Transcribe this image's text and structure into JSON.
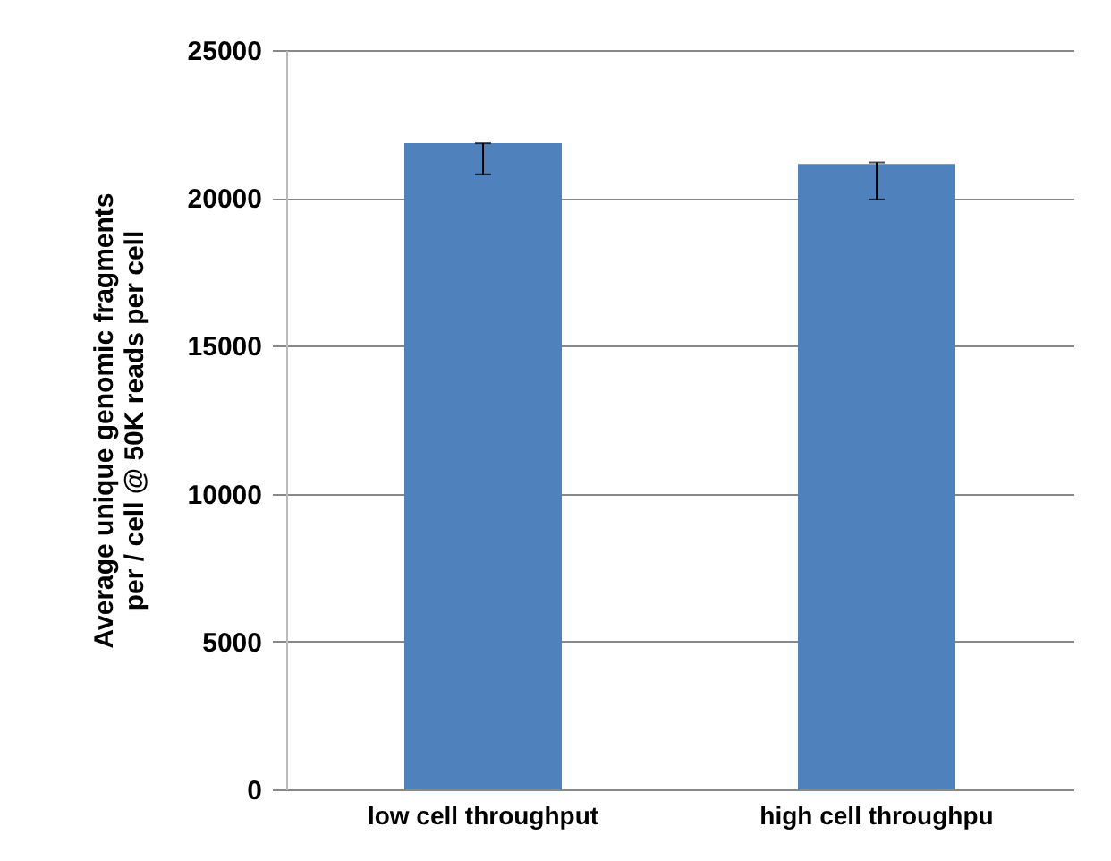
{
  "chart_data": {
    "type": "bar",
    "ylabel": "Average unique genomic fragments\nper / cell @ 50K reads per cell",
    "categories": [
      "low cell throughput",
      "high cell throughpu"
    ],
    "values": [
      21850,
      21150
    ],
    "errors": [
      [
        20800,
        21850
      ],
      [
        19950,
        21200
      ]
    ],
    "color": "#4f81bd",
    "ylim": [
      0,
      25000
    ],
    "yticks": [
      0,
      5000,
      10000,
      15000,
      20000,
      25000
    ],
    "grid": "y"
  }
}
